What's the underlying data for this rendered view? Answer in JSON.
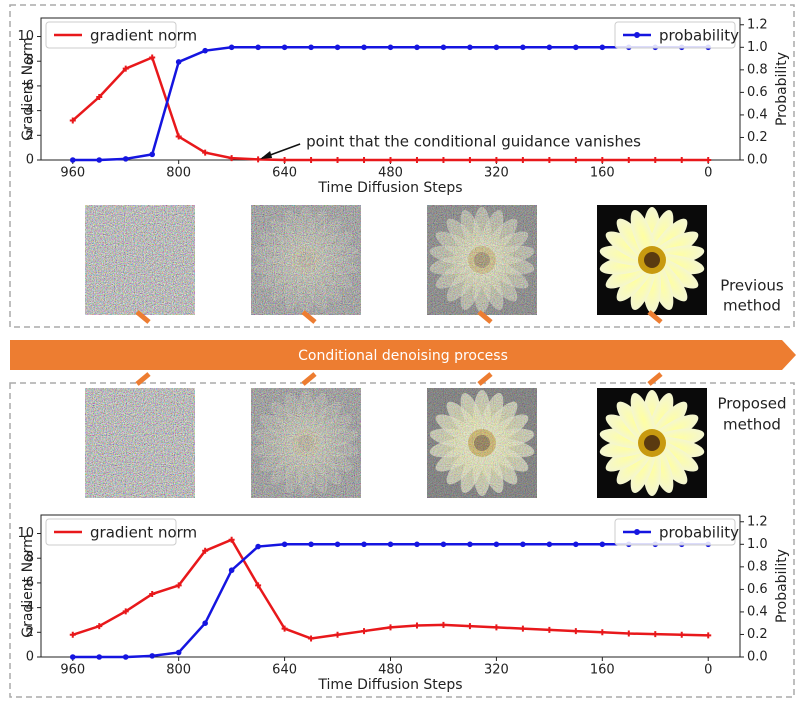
{
  "chart_data": [
    {
      "type": "line",
      "x_label": "Time Diffusion Steps",
      "y_label": "Gradient Norm",
      "y2_label": "Probability",
      "annotation": "point that the conditional guidance vanishes",
      "annotation_x": 680,
      "x": [
        960,
        920,
        880,
        840,
        800,
        760,
        720,
        680,
        640,
        600,
        560,
        520,
        480,
        440,
        400,
        360,
        320,
        280,
        240,
        200,
        160,
        120,
        80,
        40,
        0
      ],
      "series": [
        {
          "name": "gradient norm",
          "color": "#e8181b",
          "values": [
            3.2,
            5.1,
            7.4,
            8.3,
            1.9,
            0.6,
            0.15,
            0.05,
            0,
            0,
            0,
            0,
            0,
            0,
            0,
            0,
            0,
            0,
            0,
            0,
            0,
            0,
            0,
            0,
            0
          ]
        },
        {
          "name": "probability",
          "color": "#1515e0",
          "axis": "y2",
          "values": [
            0,
            0,
            0.01,
            0.05,
            0.87,
            0.97,
            1.0,
            1.0,
            1.0,
            1.0,
            1.0,
            1.0,
            1.0,
            1.0,
            1.0,
            1.0,
            1.0,
            1.0,
            1.0,
            1.0,
            1.0,
            1.0,
            1.0,
            1.0,
            1.0
          ]
        }
      ],
      "xlim": [
        1008,
        -48
      ],
      "xticks": [
        960,
        800,
        640,
        480,
        320,
        160,
        0
      ],
      "ylim": [
        0,
        11.5
      ],
      "yticks": [
        0,
        2,
        4,
        6,
        8,
        10
      ],
      "y2lim": [
        0,
        1.26
      ],
      "y2ticks": [
        {
          "value": 0,
          "label": "0.0"
        },
        0.2,
        0.4,
        0.6,
        0.8,
        {
          "value": 1,
          "label": "1.0"
        },
        1.2
      ],
      "legend": [
        "upper left",
        "upper right"
      ]
    },
    {
      "type": "line",
      "x_label": "Time Diffusion Steps",
      "y_label": "Gradient Norm",
      "y2_label": "Probability",
      "x": [
        960,
        920,
        880,
        840,
        800,
        760,
        720,
        680,
        640,
        600,
        560,
        520,
        480,
        440,
        400,
        360,
        320,
        280,
        240,
        200,
        160,
        120,
        80,
        40,
        0
      ],
      "series": [
        {
          "name": "gradient norm",
          "color": "#e8181b",
          "values": [
            1.8,
            2.5,
            3.7,
            5.1,
            5.8,
            8.6,
            9.5,
            5.8,
            2.3,
            1.5,
            1.8,
            2.1,
            2.4,
            2.55,
            2.6,
            2.5,
            2.4,
            2.3,
            2.2,
            2.1,
            2.0,
            1.9,
            1.85,
            1.8,
            1.75
          ]
        },
        {
          "name": "probability",
          "color": "#1515e0",
          "axis": "y2",
          "values": [
            0,
            0,
            0,
            0.01,
            0.04,
            0.3,
            0.77,
            0.98,
            1.0,
            1.0,
            1.0,
            1.0,
            1.0,
            1.0,
            1.0,
            1.0,
            1.0,
            1.0,
            1.0,
            1.0,
            1.0,
            1.0,
            1.0,
            1.0,
            1.0
          ]
        }
      ],
      "xlim": [
        1008,
        -48
      ],
      "xticks": [
        960,
        800,
        640,
        480,
        320,
        160,
        0
      ],
      "ylim": [
        0,
        11.5
      ],
      "yticks": [
        0,
        2,
        4,
        6,
        8,
        10
      ],
      "y2lim": [
        0,
        1.26
      ],
      "y2ticks": [
        {
          "value": 0,
          "label": "0.0"
        },
        0.2,
        0.4,
        0.6,
        0.8,
        {
          "value": 1,
          "label": "1.0"
        },
        1.2
      ],
      "legend": [
        "upper left",
        "upper right"
      ]
    }
  ],
  "figure": {
    "process_label": "Conditional denoising process",
    "previous_label": [
      "Previous",
      "method"
    ],
    "proposed_label": [
      "Proposed",
      "method"
    ]
  }
}
